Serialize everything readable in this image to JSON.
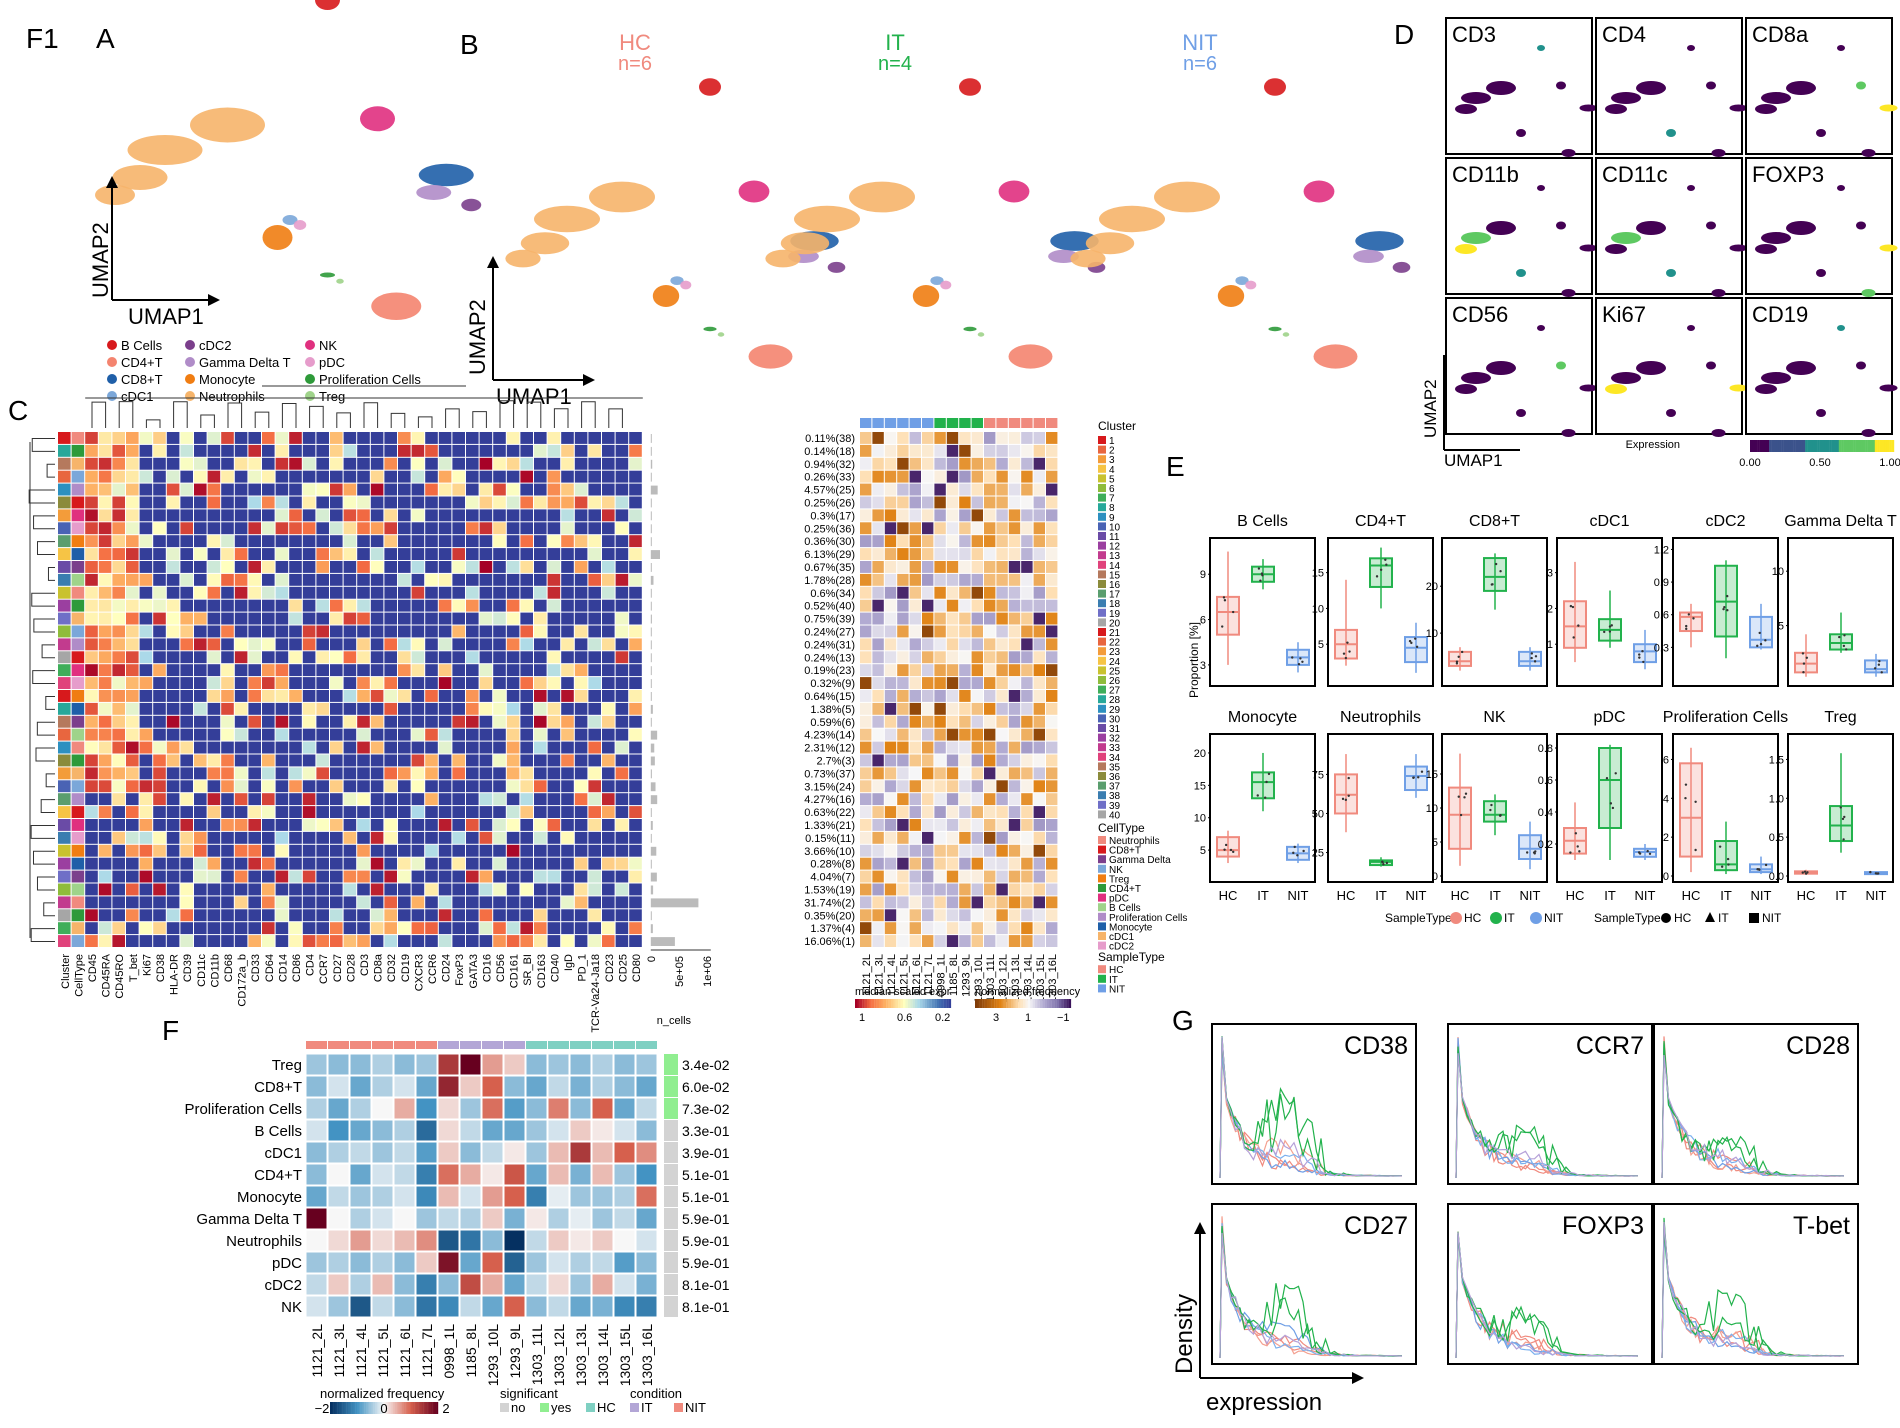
{
  "figure_id": "F1",
  "panels": {
    "A": {
      "label": "A",
      "xaxis": "UMAP1",
      "yaxis": "UMAP2"
    },
    "B": {
      "label": "B",
      "xaxis": "UMAP1",
      "yaxis": "UMAP2",
      "groups": [
        {
          "name": "HC",
          "n": "n=6",
          "color": "#f08a7e"
        },
        {
          "name": "IT",
          "n": "n=4",
          "color": "#22b24c"
        },
        {
          "name": "NIT",
          "n": "n=6",
          "color": "#6f9fe6"
        }
      ]
    },
    "C": {
      "label": "C"
    },
    "D": {
      "label": "D",
      "markers": [
        "CD3",
        "CD4",
        "CD8a",
        "CD11b",
        "CD11c",
        "FOXP3",
        "CD56",
        "Ki67",
        "CD19"
      ],
      "xaxis": "UMAP1",
      "yaxis": "UMAP2",
      "colorbar_title": "Expression",
      "colorbar_ticks": [
        "0.00",
        "0.50",
        "1.00"
      ]
    },
    "E": {
      "label": "E",
      "ylabel": "Proportion [%]",
      "legend_title": "SampleType",
      "shape_title": "SampleType"
    },
    "F": {
      "label": "F"
    },
    "G": {
      "label": "G",
      "xlabel": "expression",
      "ylabel": "Density",
      "markers": [
        "CD38",
        "CCR7",
        "CD28",
        "CD27",
        "FOXP3",
        "T-bet"
      ]
    }
  },
  "cell_types": [
    {
      "name": "B Cells",
      "color": "#d7191c"
    },
    {
      "name": "CD4+T",
      "color": "#f4846f"
    },
    {
      "name": "CD8+T",
      "color": "#1f5fa8"
    },
    {
      "name": "cDC1",
      "color": "#7ba7d9"
    },
    {
      "name": "cDC2",
      "color": "#7b3f8c"
    },
    {
      "name": "Gamma Delta T",
      "color": "#b08cc8"
    },
    {
      "name": "Monocyte",
      "color": "#f07d12"
    },
    {
      "name": "Neutrophils",
      "color": "#f6b46a"
    },
    {
      "name": "NK",
      "color": "#e0307f"
    },
    {
      "name": "pDC",
      "color": "#e69ccb"
    },
    {
      "name": "Proliferation Cells",
      "color": "#2e9a3a"
    },
    {
      "name": "Treg",
      "color": "#9fd38a"
    }
  ],
  "heatmap_c": {
    "markers": [
      "Cluster",
      "CellType",
      "CD45",
      "CD45RA",
      "CD45RO",
      "T_bet",
      "Ki67",
      "CD38",
      "HLA-DR",
      "CD39",
      "CD11c",
      "CD11b",
      "CD68",
      "CD172a_b",
      "CD33",
      "CD64",
      "CD14",
      "CD86",
      "CD4",
      "CCR7",
      "CD27",
      "CD28",
      "CD3",
      "CD8a",
      "CD32",
      "CD19",
      "CXCR3",
      "CCR6",
      "CD24",
      "FoxP3",
      "GATA3",
      "CD16",
      "CD56",
      "CD161",
      "SR_BI",
      "CD163",
      "CD40",
      "IgD",
      "PD_1",
      "TCR-Va24-Ja18",
      "CD23",
      "CD25",
      "CD80"
    ],
    "cluster_pct": [
      "0.11%(38)",
      "0.14%(18)",
      "0.94%(32)",
      "0.26%(33)",
      "4.57%(25)",
      "0.25%(26)",
      "0.3%(17)",
      "0.25%(36)",
      "0.36%(30)",
      "6.13%(29)",
      "0.67%(35)",
      "1.78%(28)",
      "0.6%(34)",
      "0.52%(40)",
      "0.75%(39)",
      "0.24%(27)",
      "0.24%(31)",
      "0.24%(13)",
      "0.19%(23)",
      "0.32%(9)",
      "0.64%(15)",
      "1.38%(5)",
      "0.59%(6)",
      "4.23%(14)",
      "2.31%(12)",
      "2.7%(3)",
      "0.73%(37)",
      "3.15%(24)",
      "4.27%(16)",
      "0.63%(22)",
      "1.33%(21)",
      "0.15%(11)",
      "3.66%(10)",
      "0.28%(8)",
      "4.04%(7)",
      "1.53%(19)",
      "31.74%(2)",
      "0.35%(20)",
      "1.37%(4)",
      "16.06%(1)"
    ],
    "ncells_axis": [
      "0",
      "5e+05",
      "1e+06"
    ],
    "ncells_label": "n_cells",
    "samples": [
      "1121_2L",
      "1121_3L",
      "1121_4L",
      "1121_5L",
      "1121_6L",
      "1121_7L",
      "0998_1L",
      "1185_8L",
      "1293_9L",
      "1293_10L",
      "1303_11L",
      "1303_12L",
      "1303_13L",
      "1303_14L",
      "1303_15L",
      "1303_16L"
    ],
    "sample_groups": [
      "NIT",
      "NIT",
      "NIT",
      "NIT",
      "NIT",
      "NIT",
      "IT",
      "IT",
      "IT",
      "IT",
      "HC",
      "HC",
      "HC",
      "HC",
      "HC",
      "HC"
    ],
    "cluster_legend_title": "Cluster",
    "cluster_ids": [
      "1",
      "2",
      "3",
      "4",
      "5",
      "6",
      "7",
      "8",
      "9",
      "10",
      "11",
      "12",
      "13",
      "14",
      "15",
      "16",
      "17",
      "18",
      "19",
      "20",
      "21",
      "22",
      "23",
      "24",
      "25",
      "26",
      "27",
      "28",
      "29",
      "30",
      "31",
      "32",
      "33",
      "34",
      "35",
      "36",
      "37",
      "38",
      "39",
      "40"
    ],
    "celltype_legend_title": "CellType",
    "celltype_legend": [
      "Neutrophils",
      "CD8+T",
      "Gamma Delta",
      "NK",
      "Treg",
      "CD4+T",
      "pDC",
      "B Cells",
      "Proliferation Cells",
      "Monocyte",
      "cDC1",
      "cDC2"
    ],
    "sampletype_legend_title": "SampleType",
    "sampletype_legend": [
      "HC",
      "IT",
      "NIT"
    ],
    "expr_legend_title": "median scaled expr",
    "expr_ticks": [
      "1",
      "0.6",
      "0.2"
    ],
    "freq_legend_title": "normalized frequency",
    "freq_ticks": [
      "3",
      "1",
      "−1"
    ]
  },
  "panel_e": {
    "x_categories": [
      "HC",
      "IT",
      "NIT"
    ],
    "group_colors": {
      "HC": "#f08a7e",
      "IT": "#22b24c",
      "NIT": "#6f9fe6"
    },
    "boxes": [
      {
        "name": "B Cells",
        "yticks": [
          "3",
          "6",
          "9"
        ],
        "ymin": 2,
        "ymax": 11,
        "stats": [
          [
            3,
            5,
            6.5,
            7.5,
            10.5
          ],
          [
            8,
            8.5,
            9,
            9.5,
            10
          ],
          [
            2.5,
            3,
            3.5,
            4,
            4.5
          ]
        ]
      },
      {
        "name": "CD4+T",
        "yticks": [
          "5",
          "10",
          "15"
        ],
        "ymin": 0,
        "ymax": 19,
        "stats": [
          [
            2,
            3,
            5,
            7,
            14
          ],
          [
            10,
            13,
            16,
            17,
            18.5
          ],
          [
            1,
            2.5,
            4.5,
            6,
            8
          ]
        ]
      },
      {
        "name": "CD8+T",
        "yticks": [
          "10",
          "20"
        ],
        "ymin": 0,
        "ymax": 29,
        "stats": [
          [
            2,
            3,
            4,
            6,
            7
          ],
          [
            15,
            19,
            22,
            26,
            27
          ],
          [
            2,
            3,
            4,
            6,
            7
          ]
        ]
      },
      {
        "name": "cDC1",
        "yticks": [
          "1",
          "2",
          "3"
        ],
        "ymin": 0,
        "ymax": 3.8,
        "stats": [
          [
            0.5,
            0.9,
            1.5,
            2.2,
            3.3
          ],
          [
            0.9,
            1.1,
            1.4,
            1.7,
            2.5
          ],
          [
            0.3,
            0.5,
            0.8,
            1.0,
            1.4
          ]
        ]
      },
      {
        "name": "cDC2",
        "yticks": [
          "0.3",
          "0.6",
          "0.9",
          "1.2"
        ],
        "ymin": 0,
        "ymax": 1.25,
        "stats": [
          [
            0.3,
            0.45,
            0.58,
            0.62,
            0.7
          ],
          [
            0.2,
            0.4,
            0.72,
            1.05,
            1.1
          ],
          [
            0.28,
            0.3,
            0.37,
            0.58,
            0.7
          ]
        ]
      },
      {
        "name": "Gamma Delta T",
        "yticks": [
          "5",
          "10"
        ],
        "ymin": 0,
        "ymax": 12.5,
        "stats": [
          [
            0.3,
            0.7,
            1.5,
            2.5,
            4.2
          ],
          [
            2.5,
            2.8,
            3.4,
            4.2,
            6.2
          ],
          [
            0.3,
            0.7,
            1.0,
            1.8,
            2.4
          ]
        ]
      },
      {
        "name": "Monocyte",
        "yticks": [
          "5",
          "10",
          "15",
          "20"
        ],
        "ymin": 1,
        "ymax": 22,
        "stats": [
          [
            3,
            4,
            5,
            7,
            8
          ],
          [
            11,
            13,
            15.5,
            17,
            20
          ],
          [
            3,
            3.5,
            4.5,
            5.5,
            6
          ]
        ]
      },
      {
        "name": "Neutrophils",
        "yticks": [
          "25",
          "50",
          "75"
        ],
        "ymin": 10,
        "ymax": 97,
        "stats": [
          [
            38,
            50,
            62,
            75,
            88
          ],
          [
            16,
            17,
            19,
            20,
            22
          ],
          [
            60,
            65,
            74,
            80,
            88
          ]
        ]
      },
      {
        "name": "NK",
        "yticks": [
          "0",
          "5",
          "10",
          "15"
        ],
        "ymin": 0,
        "ymax": 20,
        "stats": [
          [
            1.5,
            4,
            9,
            13,
            18
          ],
          [
            6,
            8,
            9,
            11,
            12
          ],
          [
            1,
            2.5,
            4,
            6,
            8
          ]
        ]
      },
      {
        "name": "pDC",
        "yticks": [
          "0.2",
          "0.4",
          "0.6",
          "0.8"
        ],
        "ymin": 0,
        "ymax": 0.85,
        "stats": [
          [
            0.1,
            0.14,
            0.22,
            0.3,
            0.46
          ],
          [
            0.1,
            0.3,
            0.6,
            0.8,
            0.82
          ],
          [
            0.1,
            0.12,
            0.15,
            0.17,
            0.2
          ]
        ]
      },
      {
        "name": "Proliferation Cells",
        "yticks": [
          "0",
          "2",
          "4",
          "6"
        ],
        "ymin": 0,
        "ymax": 7,
        "stats": [
          [
            0.2,
            1,
            3,
            5.8,
            6.6
          ],
          [
            0.1,
            0.3,
            0.6,
            1.8,
            2.8
          ],
          [
            0.1,
            0.2,
            0.35,
            0.6,
            1
          ]
        ]
      },
      {
        "name": "Treg",
        "yticks": [
          "0.0",
          "0.5",
          "1.0",
          "1.5"
        ],
        "ymin": 0,
        "ymax": 1.75,
        "stats": [
          [
            0.02,
            0.03,
            0.05,
            0.06,
            0.08
          ],
          [
            0.3,
            0.45,
            0.65,
            0.9,
            1.58
          ],
          [
            0.02,
            0.03,
            0.04,
            0.05,
            0.06
          ]
        ]
      }
    ],
    "legend_items": [
      "HC",
      "IT",
      "NIT"
    ],
    "shape_items": [
      "HC",
      "IT",
      "NIT"
    ]
  },
  "heatmap_f": {
    "rows": [
      "Treg",
      "CD8+T",
      "Proliferation Cells",
      "B Cells",
      "cDC1",
      "CD4+T",
      "Monocyte",
      "Gamma Delta T",
      "Neutrophils",
      "pDC",
      "cDC2",
      "NK"
    ],
    "pvalues": [
      "3.4e-02",
      "6.0e-02",
      "7.3e-02",
      "3.3e-01",
      "3.9e-01",
      "5.1e-01",
      "5.1e-01",
      "5.9e-01",
      "5.9e-01",
      "5.9e-01",
      "8.1e-01",
      "8.1e-01"
    ],
    "significant": [
      "yes",
      "yes",
      "yes",
      "no",
      "no",
      "no",
      "no",
      "no",
      "no",
      "no",
      "no",
      "no"
    ],
    "columns": [
      "1121_2L",
      "1121_3L",
      "1121_4L",
      "1121_5L",
      "1121_6L",
      "1121_7L",
      "0998_1L",
      "1185_8L",
      "1293_10L",
      "1293_9L",
      "1303_11L",
      "1303_12L",
      "1303_13L",
      "1303_14L",
      "1303_15L",
      "1303_16L"
    ],
    "column_conditions": [
      "NIT",
      "NIT",
      "NIT",
      "NIT",
      "NIT",
      "NIT",
      "IT",
      "IT",
      "IT",
      "IT",
      "HC",
      "HC",
      "HC",
      "HC",
      "HC",
      "HC"
    ],
    "values": [
      [
        -0.5,
        -0.6,
        -0.6,
        -0.4,
        -0.6,
        -0.5,
        1.4,
        2.0,
        0.6,
        0.3,
        -0.6,
        -0.5,
        -0.6,
        -0.4,
        -0.6,
        -0.5
      ],
      [
        -0.6,
        -0.2,
        -0.8,
        -0.4,
        -0.2,
        -0.8,
        1.6,
        0.3,
        1.0,
        -0.6,
        -0.8,
        -0.3,
        -0.7,
        -0.4,
        -0.6,
        -0.8
      ],
      [
        -0.4,
        -0.8,
        -0.4,
        0.0,
        0.5,
        -1.0,
        0.2,
        -0.5,
        0.9,
        -0.9,
        -0.6,
        0.8,
        -0.6,
        1.0,
        -0.8,
        -0.3
      ],
      [
        -0.2,
        -1.0,
        -0.8,
        -0.6,
        -0.4,
        -1.4,
        0.2,
        -0.3,
        -0.8,
        -0.8,
        -0.5,
        -0.2,
        0.3,
        0.1,
        -0.2,
        -0.6
      ],
      [
        -0.6,
        -0.4,
        -0.3,
        -0.5,
        -0.3,
        -0.9,
        0.3,
        -0.6,
        -0.3,
        0.1,
        -0.5,
        0.4,
        1.4,
        0.4,
        1.0,
        0.7
      ],
      [
        -0.6,
        0.0,
        -0.8,
        -0.2,
        -0.3,
        -1.2,
        0.9,
        0.5,
        0.1,
        1.1,
        -0.8,
        0.4,
        -0.7,
        0.4,
        -0.5,
        -1.0
      ],
      [
        -0.8,
        -0.3,
        -0.5,
        -0.4,
        -0.2,
        -1.1,
        0.4,
        -0.2,
        0.6,
        1.0,
        -1.2,
        -0.1,
        -0.5,
        -0.5,
        -0.4,
        0.9
      ],
      [
        2.0,
        0.0,
        -0.4,
        -0.2,
        0.0,
        -0.5,
        -0.3,
        -0.4,
        0.3,
        -0.7,
        0.1,
        -0.4,
        -0.1,
        -0.5,
        -0.3,
        -0.8
      ],
      [
        0.0,
        0.2,
        0.6,
        0.2,
        0.4,
        0.7,
        -1.6,
        -1.3,
        -0.6,
        -2.0,
        -0.3,
        0.3,
        0.1,
        0.3,
        0.0,
        -0.2
      ],
      [
        -0.5,
        -0.4,
        -0.6,
        -0.4,
        -0.6,
        0.3,
        1.8,
        -0.8,
        1.0,
        -1.5,
        -0.5,
        -0.2,
        -0.4,
        -0.3,
        -0.9,
        -0.6
      ],
      [
        -0.3,
        0.3,
        -0.4,
        0.4,
        -0.6,
        -1.2,
        -0.6,
        1.2,
        0.5,
        -0.8,
        -0.3,
        0.2,
        -0.5,
        0.5,
        -0.2,
        -0.7
      ],
      [
        -0.2,
        -0.5,
        -1.6,
        -0.3,
        -0.6,
        -1.3,
        -1.1,
        -0.3,
        -0.8,
        1.0,
        -0.6,
        -0.3,
        -0.8,
        -0.7,
        -1.1,
        -1.2
      ]
    ],
    "freq_legend_title": "normalized frequency",
    "freq_ticks": [
      "−2",
      "0",
      "2"
    ],
    "sig_legend_title": "significant",
    "sig_items": [
      "no",
      "yes"
    ],
    "cond_legend_title": "condition",
    "cond_items": [
      "HC",
      "IT",
      "NIT"
    ]
  }
}
